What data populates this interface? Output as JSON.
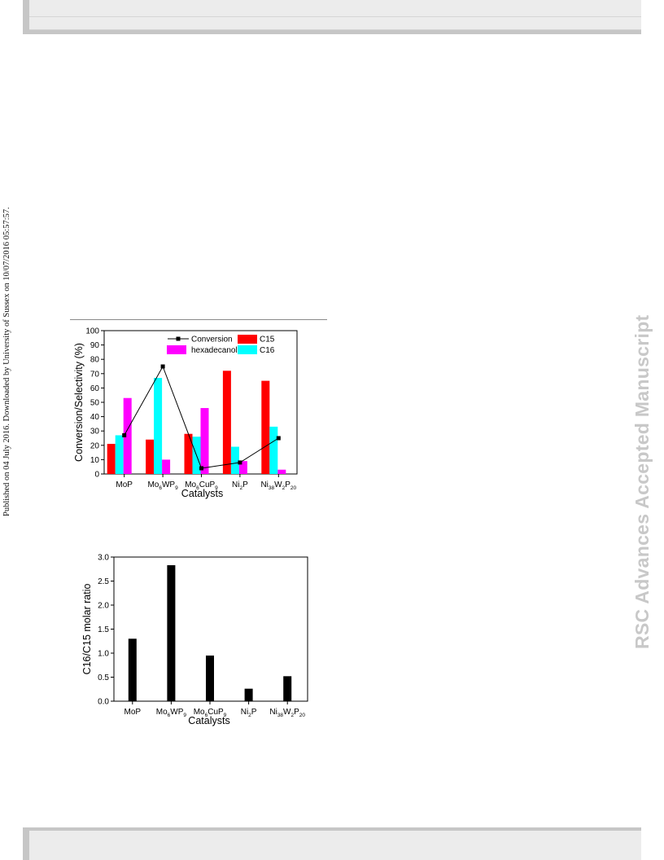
{
  "side_note": "Published on 04 July 2016. Downloaded by University of Sussex on 10/07/2016 05:57:57.",
  "watermark": "RSC Advances Accepted Manuscript",
  "chart_data": [
    {
      "type": "bar",
      "xlabel": "Catalysts",
      "ylabel": "Conversion/Selectivity (%)",
      "ylim": [
        0,
        100
      ],
      "yticks": [
        0,
        10,
        20,
        30,
        40,
        50,
        60,
        70,
        80,
        90,
        100
      ],
      "categories": [
        {
          "base": "MoP",
          "parts": [
            [
              "MoP",
              ""
            ]
          ]
        },
        {
          "base": "Mo6WP9",
          "parts": [
            [
              "Mo",
              ""
            ],
            [
              "6",
              "sub"
            ],
            [
              "WP",
              ""
            ],
            [
              "9",
              "sub"
            ]
          ]
        },
        {
          "base": "Mo6CuP9",
          "parts": [
            [
              "Mo",
              ""
            ],
            [
              "6",
              "sub"
            ],
            [
              "CuP",
              ""
            ],
            [
              "9",
              "sub"
            ]
          ]
        },
        {
          "base": "Ni2P",
          "parts": [
            [
              "Ni",
              ""
            ],
            [
              "2",
              "sub"
            ],
            [
              "P",
              ""
            ]
          ]
        },
        {
          "base": "Ni38W2P20",
          "parts": [
            [
              "Ni",
              ""
            ],
            [
              "38",
              "sub"
            ],
            [
              "W",
              ""
            ],
            [
              "2",
              "sub"
            ],
            [
              "P",
              ""
            ],
            [
              "20",
              "sub"
            ]
          ]
        }
      ],
      "series": [
        {
          "name": "C15",
          "kind": "bar",
          "color": "#ff0000",
          "values": [
            21,
            24,
            28,
            72,
            65
          ]
        },
        {
          "name": "C16",
          "kind": "bar",
          "color": "#00ffff",
          "values": [
            27,
            67,
            26,
            19,
            33
          ]
        },
        {
          "name": "hexadecanol",
          "kind": "bar",
          "color": "#ff00ff",
          "values": [
            53,
            10,
            46,
            9,
            3
          ]
        },
        {
          "name": "Conversion",
          "kind": "line",
          "color": "#000000",
          "values": [
            27,
            75,
            4,
            8,
            25
          ]
        }
      ],
      "legend": "top-right"
    },
    {
      "type": "bar",
      "xlabel": "Catalysts",
      "ylabel": "C16/C15 molar ratio",
      "ylim": [
        0,
        3.0
      ],
      "yticks": [
        "0.0",
        "0.5",
        "1.0",
        "1.5",
        "2.0",
        "2.5",
        "3.0"
      ],
      "categories": [
        {
          "base": "MoP",
          "parts": [
            [
              "MoP",
              ""
            ]
          ]
        },
        {
          "base": "Mo6WP9",
          "parts": [
            [
              "Mo",
              ""
            ],
            [
              "6",
              "sub"
            ],
            [
              "WP",
              ""
            ],
            [
              "9",
              "sub"
            ]
          ]
        },
        {
          "base": "Mo6CuP9",
          "parts": [
            [
              "Mo",
              ""
            ],
            [
              "6",
              "sub"
            ],
            [
              "CuP",
              ""
            ],
            [
              "9",
              "sub"
            ]
          ]
        },
        {
          "base": "Ni2P",
          "parts": [
            [
              "Ni",
              ""
            ],
            [
              "2",
              "sub"
            ],
            [
              "P",
              ""
            ]
          ]
        },
        {
          "base": "Ni38W2P20",
          "parts": [
            [
              "Ni",
              ""
            ],
            [
              "38",
              "sub"
            ],
            [
              "W",
              ""
            ],
            [
              "2",
              "sub"
            ],
            [
              "P",
              ""
            ],
            [
              "20",
              "sub"
            ]
          ]
        }
      ],
      "series": [
        {
          "kind": "bar",
          "color": "#000000",
          "values": [
            1.3,
            2.83,
            0.95,
            0.26,
            0.52
          ]
        }
      ]
    }
  ]
}
